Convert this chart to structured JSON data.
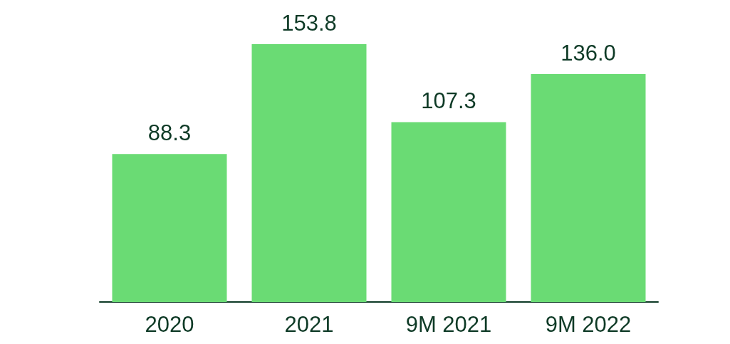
{
  "chart_data": {
    "type": "bar",
    "categories": [
      "2020",
      "2021",
      "9M 2021",
      "9M 2022"
    ],
    "values": [
      88.3,
      153.8,
      107.3,
      136.0
    ],
    "value_labels": [
      "88.3",
      "153.8",
      "107.3",
      "136.0"
    ],
    "color": "#6adb74",
    "grid": false,
    "tick_labels": "x"
  }
}
